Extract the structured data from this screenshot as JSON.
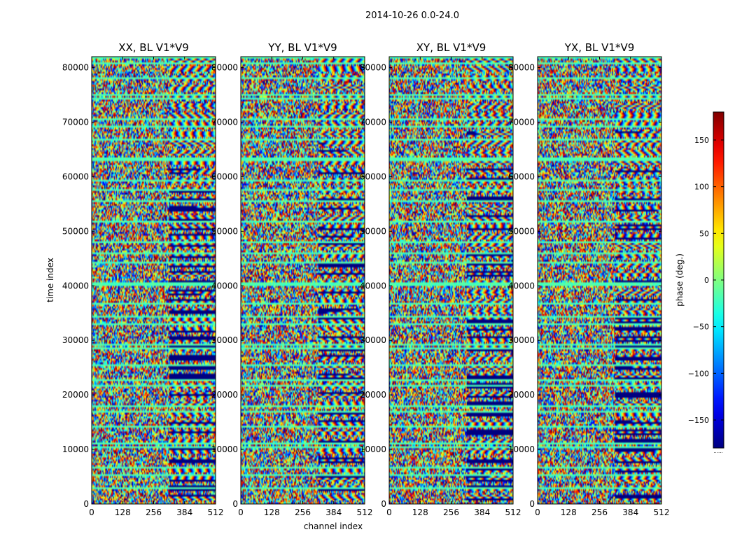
{
  "figure": {
    "suptitle": "2014-10-26 0.0-24.0"
  },
  "chart_data": {
    "type": "heatmap",
    "xlabel": "channel index",
    "ylabel": "time index",
    "xlim": [
      0,
      512
    ],
    "ylim": [
      0,
      82000
    ],
    "xticks": [
      "0",
      "128",
      "256",
      "384",
      "512"
    ],
    "xtick_values": [
      0,
      128,
      256,
      384,
      512
    ],
    "yticks": [
      "0",
      "10000",
      "20000",
      "30000",
      "40000",
      "50000",
      "60000",
      "70000",
      "80000"
    ],
    "ytick_values": [
      0,
      10000,
      20000,
      30000,
      40000,
      50000,
      60000,
      70000,
      80000
    ],
    "panels": [
      {
        "title": "XX, BL V1*V9"
      },
      {
        "title": "YY, BL V1*V9"
      },
      {
        "title": "XY, BL V1*V9"
      },
      {
        "title": "YX, BL V1*V9"
      }
    ],
    "colorbar": {
      "label": "phase (deg.)",
      "range": [
        -180,
        180
      ],
      "colormap": "jet",
      "ticks": [
        "150",
        "100",
        "50",
        "0",
        "−50",
        "−100",
        "−150"
      ],
      "tick_values": [
        150,
        100,
        50,
        0,
        -50,
        -100,
        -150
      ],
      "extra_label": "......"
    }
  }
}
